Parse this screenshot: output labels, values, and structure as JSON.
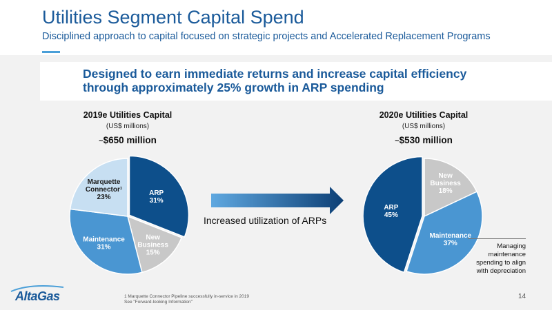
{
  "header": {
    "title": "Utilities Segment Capital Spend",
    "subtitle": "Disciplined approach to capital focused on strategic projects and Accelerated Replacement Programs"
  },
  "callout": {
    "line1": "Designed to earn immediate returns and increase capital efficiency",
    "line2": "through approximately 25% growth in ARP spending"
  },
  "arrow": {
    "caption": "Increased utilization of ARPs"
  },
  "side_note": {
    "line1": "Managing",
    "line2": "maintenance",
    "line3": "spending to align",
    "line4": "with depreciation"
  },
  "footer": {
    "logo": "AltaGas",
    "footnote1": "1 Marquette Connector Pipeline successfully in-service in 2019",
    "footnote2": "See \"Forward-looking Information\"",
    "page_number": "14"
  },
  "colors": {
    "dark_blue": "#0d4f8b",
    "grey": "#c8c8c8",
    "mid_blue": "#4a96d2",
    "light_blue": "#c7dff2",
    "brand": "#1a5a9a"
  },
  "chart_data": [
    {
      "type": "pie",
      "title": "2019e Utilities Capital",
      "units": "(US$ millions)",
      "total_prefix": "~",
      "total": "$650 million",
      "slices": [
        {
          "name": "ARP",
          "label": [
            "ARP",
            "31%"
          ],
          "value": 31,
          "color": "#0d4f8b",
          "text_color": "#ffffff"
        },
        {
          "name": "New Business",
          "label": [
            "New",
            "Business",
            "15%"
          ],
          "value": 15,
          "color": "#c8c8c8",
          "text_color": "#ffffff"
        },
        {
          "name": "Maintenance",
          "label": [
            "Maintenance",
            "31%"
          ],
          "value": 31,
          "color": "#4a96d2",
          "text_color": "#ffffff"
        },
        {
          "name": "Marquette Connector",
          "label": [
            "Marquette",
            "Connector¹",
            "23%"
          ],
          "value": 23,
          "color": "#c7dff2",
          "text_color": "#1a1a1a"
        }
      ]
    },
    {
      "type": "pie",
      "title": "2020e Utilities Capital",
      "units": "(US$ millions)",
      "total_prefix": "~",
      "total": "$530 million",
      "slices": [
        {
          "name": "New Business",
          "label": [
            "New",
            "Business",
            "18%"
          ],
          "value": 18,
          "color": "#c8c8c8",
          "text_color": "#ffffff"
        },
        {
          "name": "Maintenance",
          "label": [
            "Maintenance",
            "37%"
          ],
          "value": 37,
          "color": "#4a96d2",
          "text_color": "#ffffff"
        },
        {
          "name": "ARP",
          "label": [
            "ARP",
            "45%"
          ],
          "value": 45,
          "color": "#0d4f8b",
          "text_color": "#ffffff"
        }
      ]
    }
  ]
}
